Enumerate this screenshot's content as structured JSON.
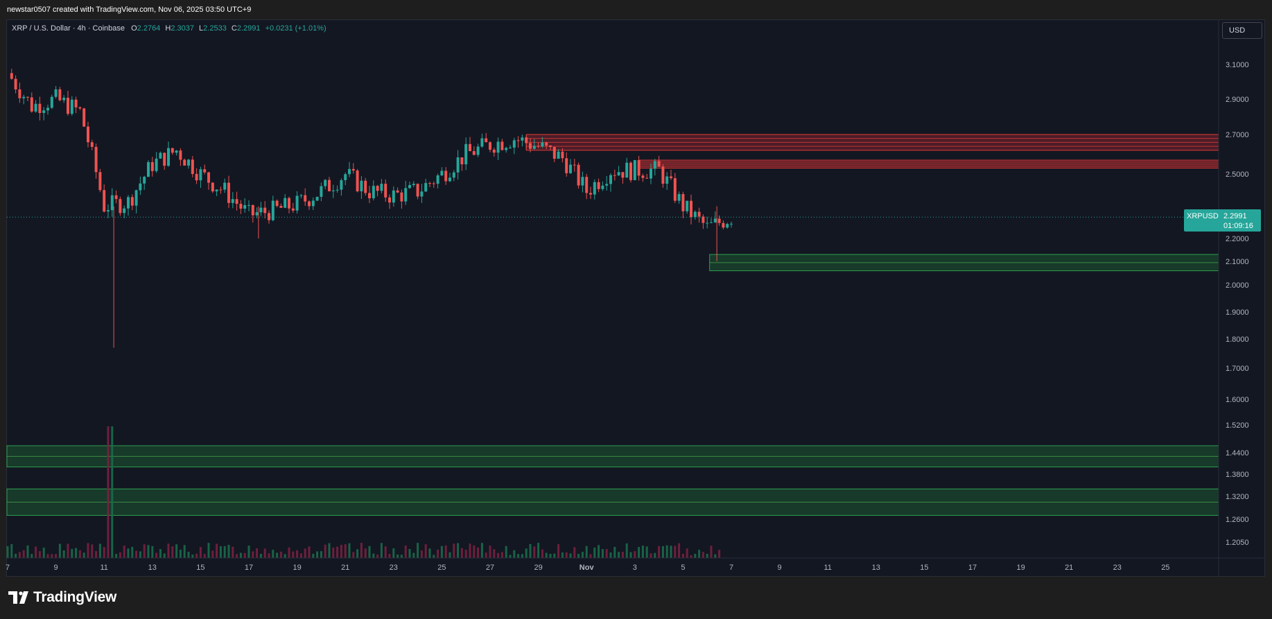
{
  "header": {
    "attribution": "newstar0507 created with TradingView.com, Nov 06, 2025 03:50 UTC+9"
  },
  "legend": {
    "symbol": "XRP / U.S. Dollar · 4h · Coinbase",
    "o_label": "O",
    "o": "2.2764",
    "h_label": "H",
    "h": "2.3037",
    "l_label": "L",
    "l": "2.2533",
    "c_label": "C",
    "c": "2.2991",
    "change": "+0.0231 (+1.01%)"
  },
  "currency": "USD",
  "price_tag": {
    "symbol": "XRPUSD",
    "price": "2.2991",
    "countdown": "01:09:16"
  },
  "brand": {
    "name": "TradingView"
  },
  "colors": {
    "up": "#26a69a",
    "down": "#ef5350",
    "background": "#131722",
    "zone_red": "#b22833",
    "zone_green": "#1f7a3a"
  },
  "chart_data": {
    "type": "candlestick",
    "symbol": "XRPUSD",
    "timeframe": "4h",
    "y_scale": "log",
    "y_ticks": [
      "3.1000",
      "2.9000",
      "2.7000",
      "2.5000",
      "2.2000",
      "2.1000",
      "2.0000",
      "1.9000",
      "1.8000",
      "1.7000",
      "1.6000",
      "1.5200",
      "1.4400",
      "1.3800",
      "1.3200",
      "1.2600",
      "1.2050"
    ],
    "x_ticks": [
      "7",
      "9",
      "11",
      "13",
      "15",
      "17",
      "19",
      "21",
      "23",
      "25",
      "27",
      "29",
      "Nov",
      "3",
      "5",
      "7",
      "9",
      "11",
      "13",
      "15",
      "17",
      "19",
      "21",
      "23",
      "25"
    ],
    "last_price": 2.2991,
    "supply_zones": [
      {
        "from": 2.62,
        "to": 2.7
      },
      {
        "from": 2.53,
        "to": 2.57
      }
    ],
    "demand_zones": [
      {
        "from": 2.06,
        "to": 2.13
      },
      {
        "from": 1.4,
        "to": 1.46
      },
      {
        "from": 1.27,
        "to": 1.34
      }
    ],
    "price_path": [
      {
        "date": "Oct 7",
        "price": 3.05
      },
      {
        "date": "Oct 8",
        "price": 2.86
      },
      {
        "date": "Oct 9",
        "price": 2.9
      },
      {
        "date": "Oct 10",
        "price": 2.83
      },
      {
        "date": "Oct 11",
        "price": 2.35
      },
      {
        "date": "Oct 11 low",
        "price": 1.77
      },
      {
        "date": "Oct 12",
        "price": 2.37
      },
      {
        "date": "Oct 13",
        "price": 2.55
      },
      {
        "date": "Oct 14",
        "price": 2.62
      },
      {
        "date": "Oct 15",
        "price": 2.5
      },
      {
        "date": "Oct 16",
        "price": 2.42
      },
      {
        "date": "Oct 17",
        "price": 2.31
      },
      {
        "date": "Oct 17 low",
        "price": 2.2
      },
      {
        "date": "Oct 18",
        "price": 2.33
      },
      {
        "date": "Oct 19",
        "price": 2.36
      },
      {
        "date": "Oct 20",
        "price": 2.42
      },
      {
        "date": "Oct 21",
        "price": 2.5
      },
      {
        "date": "Oct 22",
        "price": 2.42
      },
      {
        "date": "Oct 23",
        "price": 2.4
      },
      {
        "date": "Oct 24",
        "price": 2.42
      },
      {
        "date": "Oct 25",
        "price": 2.5
      },
      {
        "date": "Oct 26",
        "price": 2.6
      },
      {
        "date": "Oct 27",
        "price": 2.65
      },
      {
        "date": "Oct 28",
        "price": 2.68
      },
      {
        "date": "Oct 29",
        "price": 2.64
      },
      {
        "date": "Oct 30",
        "price": 2.58
      },
      {
        "date": "Oct 31",
        "price": 2.42
      },
      {
        "date": "Nov 1",
        "price": 2.52
      },
      {
        "date": "Nov 2",
        "price": 2.52
      },
      {
        "date": "Nov 3",
        "price": 2.52
      },
      {
        "date": "Nov 4",
        "price": 2.35
      },
      {
        "date": "Nov 5",
        "price": 2.25
      },
      {
        "date": "Nov 5 low",
        "price": 2.1
      },
      {
        "date": "Nov 6",
        "price": 2.2991
      }
    ],
    "volume": [
      {
        "date": "Oct 11",
        "level": "spike"
      }
    ]
  }
}
